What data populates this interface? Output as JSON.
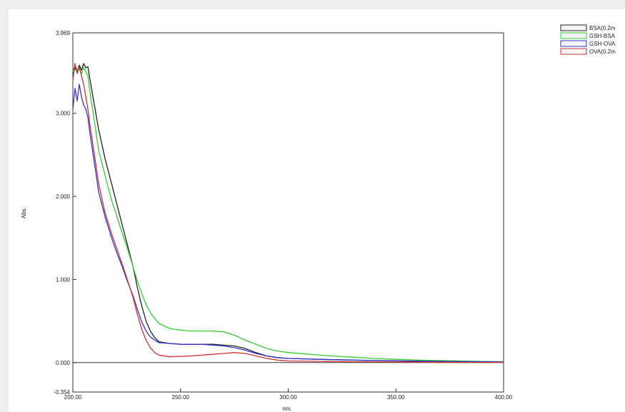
{
  "chart_data": {
    "type": "line",
    "xlabel": "nm.",
    "ylabel": "Abs.",
    "xlim": [
      200,
      400
    ],
    "ylim": [
      -0.354,
      3.969
    ],
    "x_ticks": [
      {
        "value": 200,
        "label": "200.00"
      },
      {
        "value": 250,
        "label": "250.00"
      },
      {
        "value": 300,
        "label": "300.00"
      },
      {
        "value": 350,
        "label": "350.00"
      },
      {
        "value": 400,
        "label": "400.00"
      }
    ],
    "y_ticks": [
      {
        "value": 3.969,
        "label": "3.969"
      },
      {
        "value": 3.0,
        "label": "3.000"
      },
      {
        "value": 2.0,
        "label": "2.000"
      },
      {
        "value": 1.0,
        "label": "1.000"
      },
      {
        "value": 0.0,
        "label": "0.000"
      },
      {
        "value": -0.354,
        "label": "-0.354"
      }
    ],
    "legend_position": "top-right, outside",
    "series": [
      {
        "name": "BSA(0.2m",
        "color": "#222222",
        "points": [
          [
            200,
            3.45
          ],
          [
            201,
            3.55
          ],
          [
            202,
            3.5
          ],
          [
            203,
            3.58
          ],
          [
            204,
            3.52
          ],
          [
            205,
            3.6
          ],
          [
            206,
            3.55
          ],
          [
            207,
            3.56
          ],
          [
            208,
            3.4
          ],
          [
            210,
            3.1
          ],
          [
            212,
            2.8
          ],
          [
            215,
            2.45
          ],
          [
            218,
            2.15
          ],
          [
            220,
            1.95
          ],
          [
            223,
            1.65
          ],
          [
            225,
            1.45
          ],
          [
            228,
            1.15
          ],
          [
            230,
            0.9
          ],
          [
            232,
            0.68
          ],
          [
            234,
            0.5
          ],
          [
            236,
            0.38
          ],
          [
            238,
            0.3
          ],
          [
            240,
            0.25
          ],
          [
            245,
            0.23
          ],
          [
            250,
            0.22
          ],
          [
            255,
            0.22
          ],
          [
            260,
            0.22
          ],
          [
            265,
            0.22
          ],
          [
            270,
            0.21
          ],
          [
            275,
            0.2
          ],
          [
            280,
            0.17
          ],
          [
            285,
            0.12
          ],
          [
            290,
            0.08
          ],
          [
            295,
            0.06
          ],
          [
            300,
            0.05
          ],
          [
            320,
            0.035
          ],
          [
            340,
            0.025
          ],
          [
            360,
            0.015
          ],
          [
            380,
            0.01
          ],
          [
            400,
            0.005
          ]
        ]
      },
      {
        "name": "GSH-BSA",
        "color": "#33cc33",
        "points": [
          [
            200,
            3.5
          ],
          [
            201,
            3.58
          ],
          [
            202,
            3.52
          ],
          [
            203,
            3.55
          ],
          [
            204,
            3.48
          ],
          [
            205,
            3.55
          ],
          [
            206,
            3.5
          ],
          [
            207,
            3.45
          ],
          [
            208,
            3.25
          ],
          [
            210,
            2.9
          ],
          [
            212,
            2.55
          ],
          [
            215,
            2.25
          ],
          [
            218,
            1.95
          ],
          [
            220,
            1.8
          ],
          [
            223,
            1.55
          ],
          [
            225,
            1.4
          ],
          [
            228,
            1.15
          ],
          [
            230,
            0.98
          ],
          [
            232,
            0.83
          ],
          [
            234,
            0.7
          ],
          [
            236,
            0.6
          ],
          [
            238,
            0.53
          ],
          [
            240,
            0.47
          ],
          [
            245,
            0.41
          ],
          [
            250,
            0.39
          ],
          [
            255,
            0.38
          ],
          [
            260,
            0.38
          ],
          [
            265,
            0.38
          ],
          [
            270,
            0.37
          ],
          [
            275,
            0.33
          ],
          [
            280,
            0.27
          ],
          [
            285,
            0.22
          ],
          [
            290,
            0.17
          ],
          [
            295,
            0.14
          ],
          [
            300,
            0.12
          ],
          [
            310,
            0.1
          ],
          [
            320,
            0.08
          ],
          [
            330,
            0.065
          ],
          [
            340,
            0.05
          ],
          [
            350,
            0.04
          ],
          [
            360,
            0.03
          ],
          [
            370,
            0.025
          ],
          [
            380,
            0.02
          ],
          [
            390,
            0.015
          ],
          [
            400,
            0.01
          ]
        ]
      },
      {
        "name": "GSH-OVA",
        "color": "#3333cc",
        "points": [
          [
            200,
            3.05
          ],
          [
            201,
            3.3
          ],
          [
            202,
            3.15
          ],
          [
            203,
            3.35
          ],
          [
            204,
            3.2
          ],
          [
            205,
            3.1
          ],
          [
            206,
            3.05
          ],
          [
            207,
            2.95
          ],
          [
            208,
            2.75
          ],
          [
            210,
            2.4
          ],
          [
            212,
            2.05
          ],
          [
            215,
            1.75
          ],
          [
            218,
            1.5
          ],
          [
            220,
            1.35
          ],
          [
            223,
            1.15
          ],
          [
            225,
            1.0
          ],
          [
            228,
            0.8
          ],
          [
            230,
            0.64
          ],
          [
            232,
            0.49
          ],
          [
            234,
            0.38
          ],
          [
            236,
            0.31
          ],
          [
            238,
            0.27
          ],
          [
            240,
            0.24
          ],
          [
            245,
            0.23
          ],
          [
            250,
            0.22
          ],
          [
            260,
            0.22
          ],
          [
            270,
            0.2
          ],
          [
            275,
            0.18
          ],
          [
            280,
            0.15
          ],
          [
            285,
            0.11
          ],
          [
            290,
            0.08
          ],
          [
            295,
            0.06
          ],
          [
            300,
            0.05
          ],
          [
            320,
            0.035
          ],
          [
            340,
            0.025
          ],
          [
            360,
            0.018
          ],
          [
            380,
            0.012
          ],
          [
            400,
            0.008
          ]
        ]
      },
      {
        "name": "OVA(0.2m",
        "color": "#cc3333",
        "points": [
          [
            200,
            3.4
          ],
          [
            201,
            3.6
          ],
          [
            202,
            3.48
          ],
          [
            203,
            3.55
          ],
          [
            204,
            3.45
          ],
          [
            205,
            3.35
          ],
          [
            206,
            3.2
          ],
          [
            207,
            3.05
          ],
          [
            208,
            2.85
          ],
          [
            210,
            2.5
          ],
          [
            212,
            2.15
          ],
          [
            215,
            1.8
          ],
          [
            218,
            1.55
          ],
          [
            220,
            1.4
          ],
          [
            223,
            1.18
          ],
          [
            225,
            1.02
          ],
          [
            228,
            0.78
          ],
          [
            230,
            0.58
          ],
          [
            232,
            0.4
          ],
          [
            234,
            0.27
          ],
          [
            236,
            0.18
          ],
          [
            238,
            0.12
          ],
          [
            240,
            0.09
          ],
          [
            245,
            0.07
          ],
          [
            250,
            0.075
          ],
          [
            255,
            0.08
          ],
          [
            260,
            0.09
          ],
          [
            265,
            0.1
          ],
          [
            270,
            0.11
          ],
          [
            275,
            0.12
          ],
          [
            280,
            0.11
          ],
          [
            285,
            0.08
          ],
          [
            290,
            0.05
          ],
          [
            295,
            0.03
          ],
          [
            300,
            0.02
          ],
          [
            320,
            0.012
          ],
          [
            340,
            0.008
          ],
          [
            360,
            0.005
          ],
          [
            380,
            0.003
          ],
          [
            400,
            0.002
          ]
        ]
      }
    ]
  }
}
